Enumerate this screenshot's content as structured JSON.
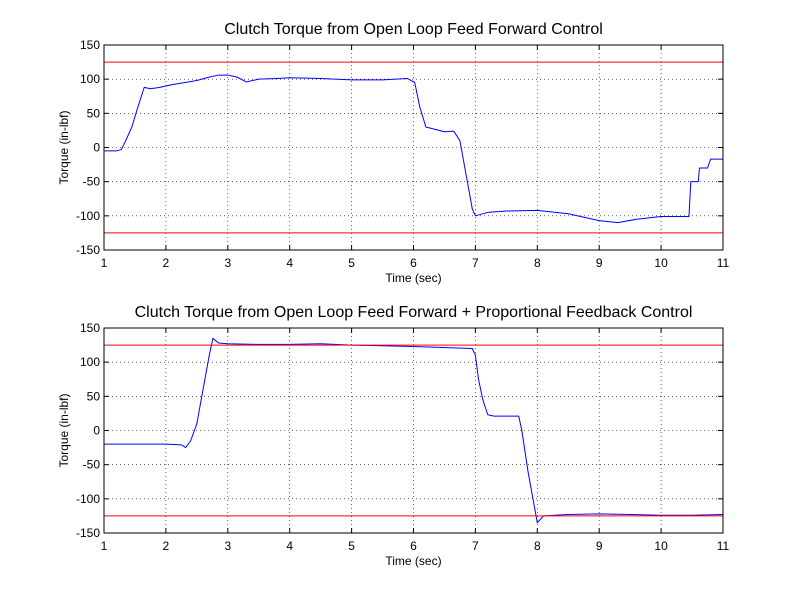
{
  "chart_data": [
    {
      "type": "line",
      "title": "Clutch Torque from Open Loop Feed Forward Control",
      "xlabel": "Time (sec)",
      "ylabel": "Torque (in-lbf)",
      "xlim": [
        1,
        11
      ],
      "ylim": [
        -150,
        150
      ],
      "xticks": [
        1,
        2,
        3,
        4,
        5,
        6,
        7,
        8,
        9,
        10,
        11
      ],
      "yticks": [
        -150,
        -100,
        -50,
        0,
        50,
        100,
        150
      ],
      "grid": true,
      "series": [
        {
          "color": "#0000ff",
          "x": [
            1.0,
            1.2,
            1.28,
            1.35,
            1.45,
            1.55,
            1.65,
            1.75,
            1.9,
            2.1,
            2.3,
            2.5,
            2.7,
            2.85,
            3.0,
            3.15,
            3.3,
            3.5,
            3.8,
            4.0,
            4.5,
            5.0,
            5.5,
            5.9,
            6.02,
            6.1,
            6.2,
            6.5,
            6.65,
            6.75,
            6.85,
            6.95,
            7.0,
            7.2,
            7.5,
            8.0,
            8.5,
            9.0,
            9.3,
            9.6,
            10.0,
            10.45,
            10.48,
            10.6,
            10.62,
            10.75,
            10.8,
            11.0
          ],
          "y": [
            -5,
            -5,
            -3,
            10,
            30,
            60,
            88,
            86,
            88,
            92,
            95,
            98,
            103,
            106,
            106,
            103,
            96,
            100,
            101,
            102,
            101,
            99,
            99,
            101,
            95,
            60,
            30,
            23,
            24,
            10,
            -40,
            -90,
            -100,
            -95,
            -93,
            -92,
            -97,
            -107,
            -110,
            -105,
            -101,
            -101,
            -50,
            -50,
            -30,
            -30,
            -17,
            -17
          ]
        },
        {
          "color": "#ff0000",
          "x": [
            1,
            11
          ],
          "y": [
            125,
            125
          ]
        },
        {
          "color": "#ff0000",
          "x": [
            1,
            11
          ],
          "y": [
            -125,
            -125
          ]
        }
      ]
    },
    {
      "type": "line",
      "title": "Clutch Torque from Open Loop Feed Forward + Proportional Feedback Control",
      "xlabel": "Time (sec)",
      "ylabel": "Torque (in-lbf)",
      "xlim": [
        1,
        11
      ],
      "ylim": [
        -150,
        150
      ],
      "xticks": [
        1,
        2,
        3,
        4,
        5,
        6,
        7,
        8,
        9,
        10,
        11
      ],
      "yticks": [
        -150,
        -100,
        -50,
        0,
        50,
        100,
        150
      ],
      "grid": true,
      "series": [
        {
          "color": "#0000ff",
          "x": [
            1.0,
            2.0,
            2.25,
            2.32,
            2.4,
            2.5,
            2.6,
            2.7,
            2.76,
            2.85,
            3.0,
            3.5,
            4.0,
            4.5,
            5.0,
            6.0,
            6.95,
            7.0,
            7.05,
            7.12,
            7.2,
            7.3,
            7.7,
            7.75,
            7.85,
            7.95,
            8.0,
            8.1,
            8.5,
            9.0,
            9.5,
            10.0,
            10.5,
            11.0
          ],
          "y": [
            -20,
            -20,
            -21,
            -25,
            -15,
            10,
            60,
            110,
            135,
            128,
            127,
            126,
            126,
            127,
            125,
            123,
            120,
            110,
            75,
            45,
            23,
            21,
            21,
            0,
            -60,
            -110,
            -135,
            -125,
            -123,
            -122,
            -123,
            -124,
            -124,
            -123
          ]
        },
        {
          "color": "#ff0000",
          "x": [
            1,
            11
          ],
          "y": [
            125,
            125
          ]
        },
        {
          "color": "#ff0000",
          "x": [
            1,
            11
          ],
          "y": [
            -125,
            -125
          ]
        }
      ]
    }
  ]
}
